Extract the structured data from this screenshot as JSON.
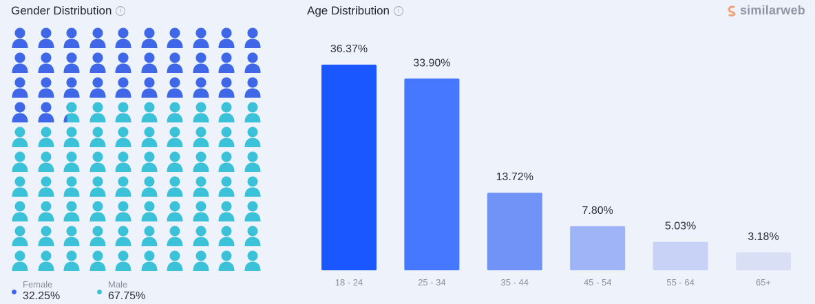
{
  "gender": {
    "title": "Gender Distribution",
    "info_icon": "info-icon",
    "female": {
      "label": "Female",
      "value": "32.25%",
      "percent": 32.25,
      "color": "#3f67e8"
    },
    "male": {
      "label": "Male",
      "value": "67.75%",
      "percent": 67.75,
      "color": "#3cc2d8"
    }
  },
  "age": {
    "title": "Age Distribution",
    "info_icon": "info-icon"
  },
  "logo": {
    "text": "similarweb",
    "icon": "similarweb-logo-icon"
  },
  "chart_data": [
    {
      "type": "pictogram",
      "categories": [
        "Female",
        "Male"
      ],
      "values": [
        32.25,
        67.75
      ],
      "colors": [
        "#3f67e8",
        "#3cc2d8"
      ],
      "grid": "10x10"
    },
    {
      "type": "bar",
      "categories": [
        "18 - 24",
        "25 - 34",
        "35 - 44",
        "45 - 54",
        "55 - 64",
        "65+"
      ],
      "values": [
        36.37,
        33.9,
        13.72,
        7.8,
        5.03,
        3.18
      ],
      "labels": [
        "36.37%",
        "33.90%",
        "13.72%",
        "7.80%",
        "5.03%",
        "3.18%"
      ],
      "colors": [
        "#1b57ff",
        "#4678ff",
        "#7193f8",
        "#9fb4f6",
        "#c7d2f6",
        "#d9e0f6"
      ],
      "grid": false
    }
  ]
}
